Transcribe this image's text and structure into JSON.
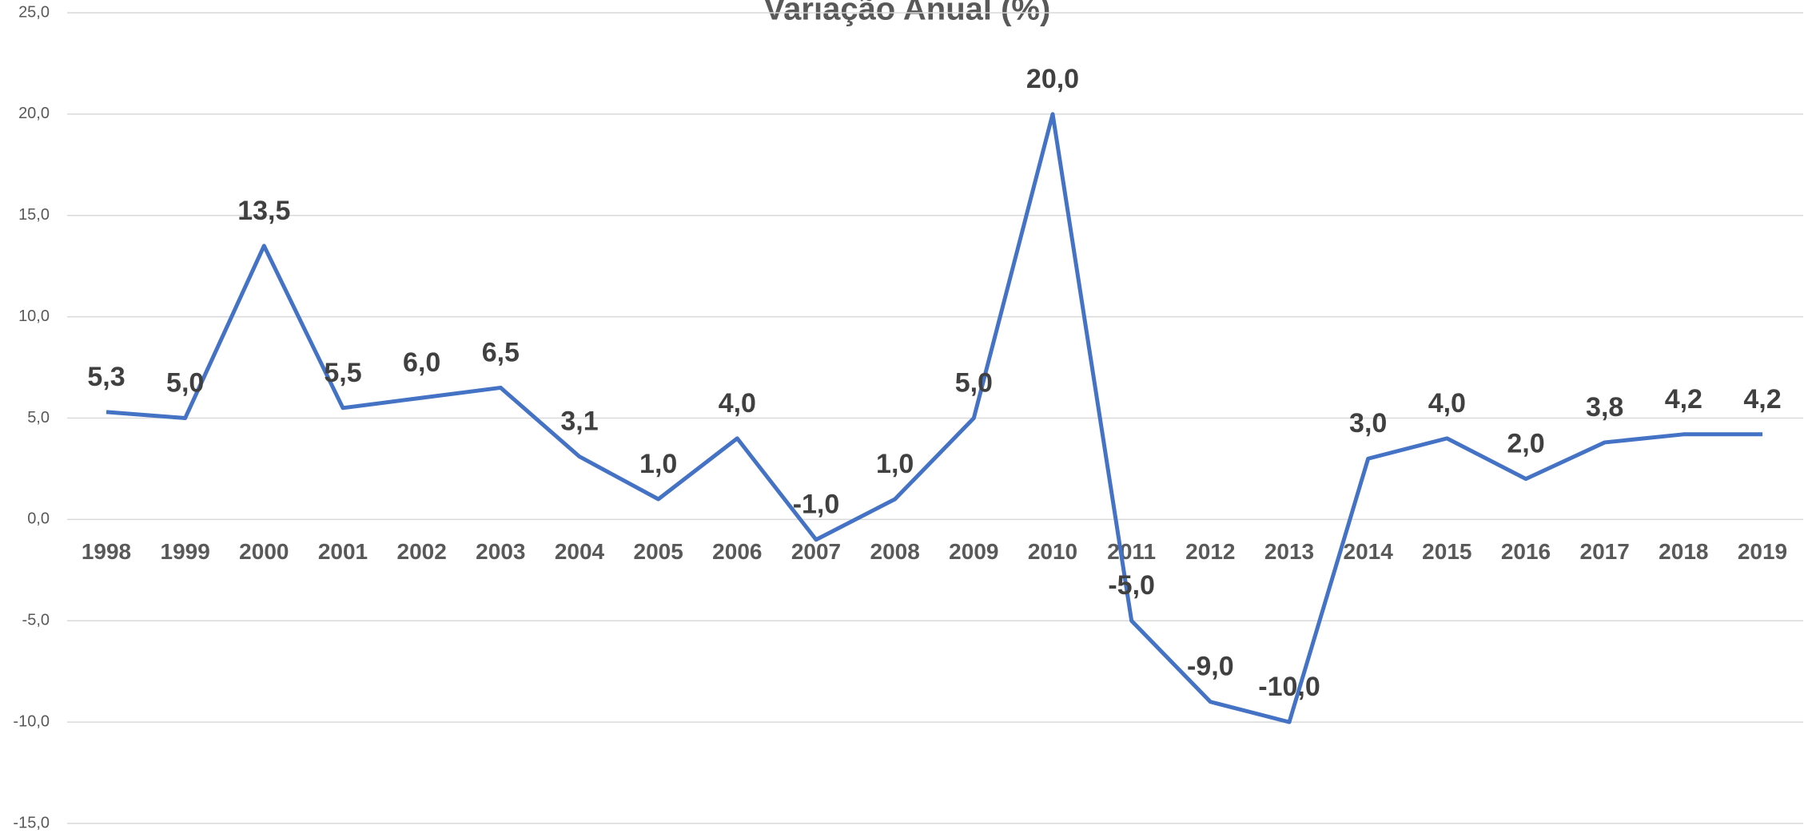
{
  "chart_data": {
    "type": "line",
    "title": "Variação Anual (%)",
    "categories": [
      "1998",
      "1999",
      "2000",
      "2001",
      "2002",
      "2003",
      "2004",
      "2005",
      "2006",
      "2007",
      "2008",
      "2009",
      "2010",
      "2011",
      "2012",
      "2013",
      "2014",
      "2015",
      "2016",
      "2017",
      "2018",
      "2019"
    ],
    "series": [
      {
        "name": "Variação Anual (%)",
        "color": "#4472c4",
        "values": [
          5.3,
          5.0,
          13.5,
          5.5,
          6.0,
          6.5,
          3.1,
          1.0,
          4.0,
          -1.0,
          1.0,
          5.0,
          20.0,
          -5.0,
          -9.0,
          -10.0,
          3.0,
          4.0,
          2.0,
          3.8,
          4.2,
          4.2
        ],
        "value_labels": [
          "5,3",
          "5,0",
          "13,5",
          "5,5",
          "6,0",
          "6,5",
          "3,1",
          "1,0",
          "4,0",
          "-1,0",
          "1,0",
          "5,0",
          "20,0",
          "-5,0",
          "-9,0",
          "-10,0",
          "3,0",
          "4,0",
          "2,0",
          "3,8",
          "4,2",
          "4,2"
        ]
      }
    ],
    "ylim": [
      -15,
      25
    ],
    "yticks": [
      {
        "value": -15,
        "label": "-15,0"
      },
      {
        "value": -10,
        "label": "-10,0"
      },
      {
        "value": -5,
        "label": "-5,0"
      },
      {
        "value": 0,
        "label": "0,0"
      },
      {
        "value": 5,
        "label": "5,0"
      },
      {
        "value": 10,
        "label": "10,0"
      },
      {
        "value": 15,
        "label": "15,0"
      },
      {
        "value": 20,
        "label": "20,0"
      },
      {
        "value": 25,
        "label": "25,0"
      }
    ],
    "grid": true
  }
}
